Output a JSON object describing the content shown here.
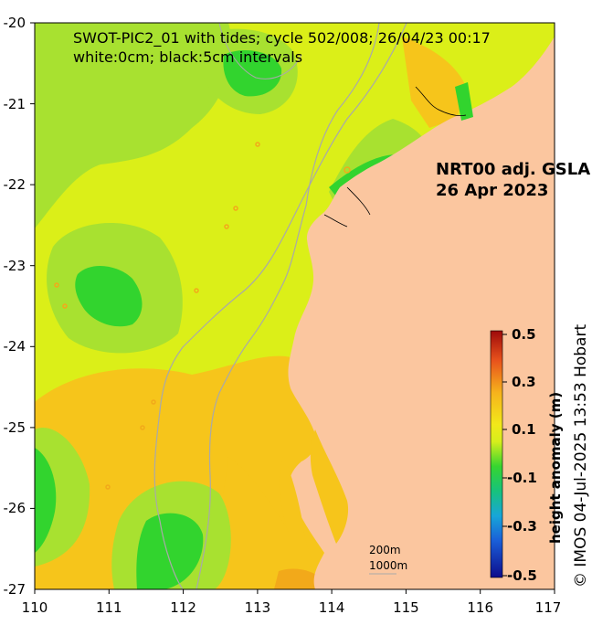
{
  "map": {
    "title_line1": "SWOT-PIC2_01 with tides; cycle 502/008; 26/04/23 00:17",
    "title_line2": "white:0cm; black:5cm intervals",
    "product_line1": "NRT00 adj. GSLA",
    "product_line2": "26 Apr 2023",
    "credit": "© IMOS 04-Jul-2025 13:53 Hobart",
    "x_ticks": [
      "110",
      "111",
      "112",
      "113",
      "114",
      "115",
      "116",
      "117"
    ],
    "y_ticks": [
      "-20",
      "-21",
      "-22",
      "-23",
      "-24",
      "-25",
      "-26",
      "-27"
    ],
    "colorbar": {
      "label": "height anomaly (m)",
      "tick_labels": [
        "0.5",
        "0.3",
        "0.1",
        "-0.1",
        "-0.3",
        "-0.5"
      ],
      "range": [
        -0.5,
        0.5
      ]
    },
    "scale_bar": {
      "label_1": "200m",
      "label_2": "1000m"
    },
    "colors": {
      "land": "#fbc69f",
      "yellow_green": "#dbef18",
      "light_green": "#a8e130",
      "green": "#32d42e",
      "orange": "#f6c51b",
      "dark_orange": "#f2a91a",
      "bathy": "#a9a9a9"
    }
  }
}
